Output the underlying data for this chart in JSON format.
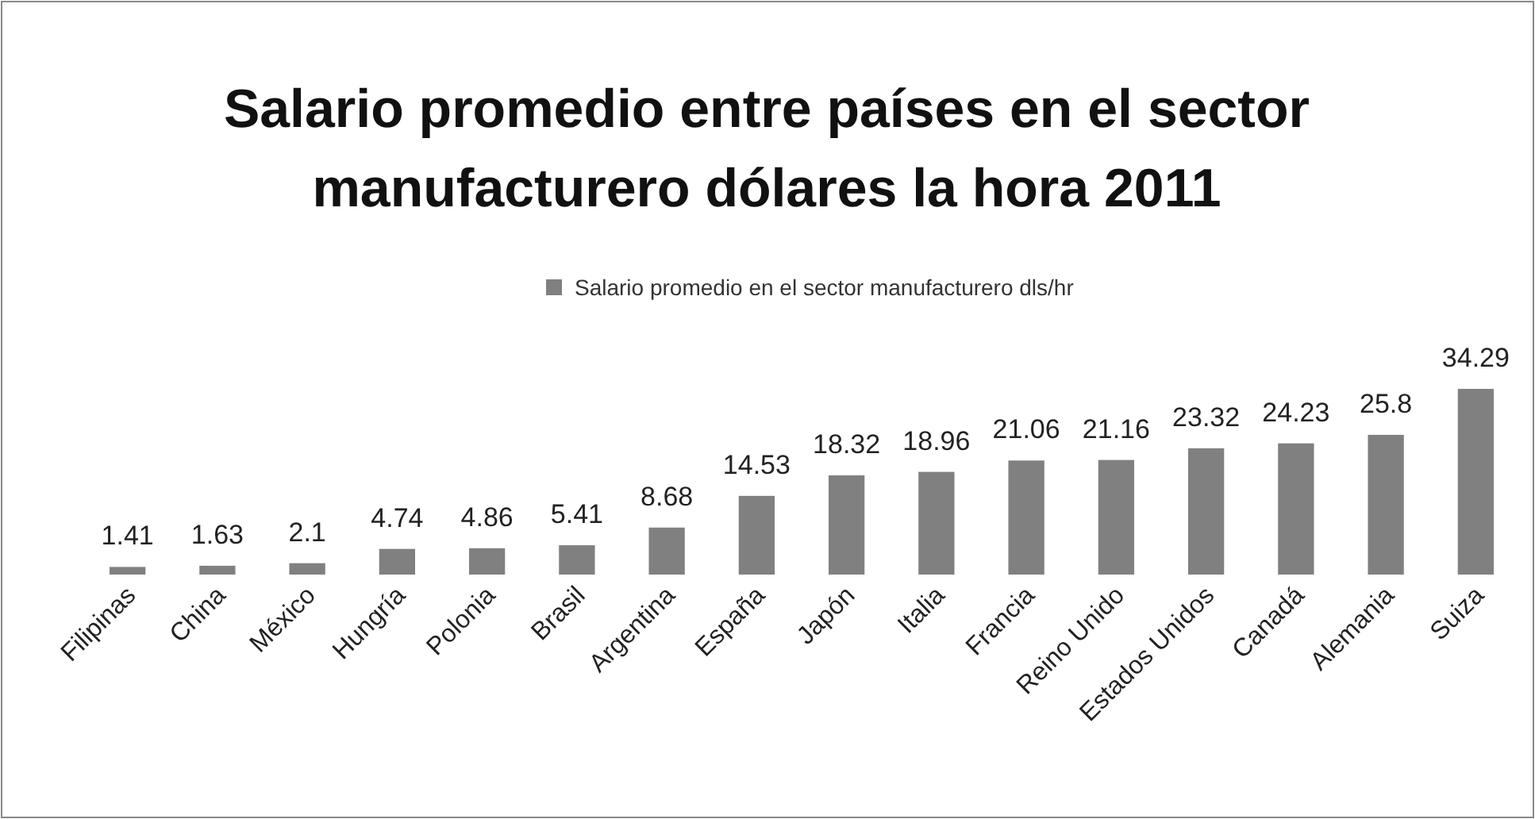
{
  "chart_data": {
    "type": "bar",
    "title": "Salario promedio entre países en el sector manufacturero dólares la hora 2011",
    "categories": [
      "Filipinas",
      "China",
      "México",
      "Hungría",
      "Polonia",
      "Brasil",
      "Argentina",
      "España",
      "Japón",
      "Italia",
      "Francia",
      "Reino Unido",
      "Estados Unidos",
      "Canadá",
      "Alemania",
      "Suiza"
    ],
    "series": [
      {
        "name": "Salario promedio en el sector manufacturero dls/hr",
        "color": "#808080",
        "values": [
          1.41,
          1.63,
          2.1,
          4.74,
          4.86,
          5.41,
          8.68,
          14.53,
          18.32,
          18.96,
          21.06,
          21.16,
          23.32,
          24.23,
          25.8,
          34.29
        ]
      }
    ],
    "data_labels": true,
    "legend": "top"
  }
}
